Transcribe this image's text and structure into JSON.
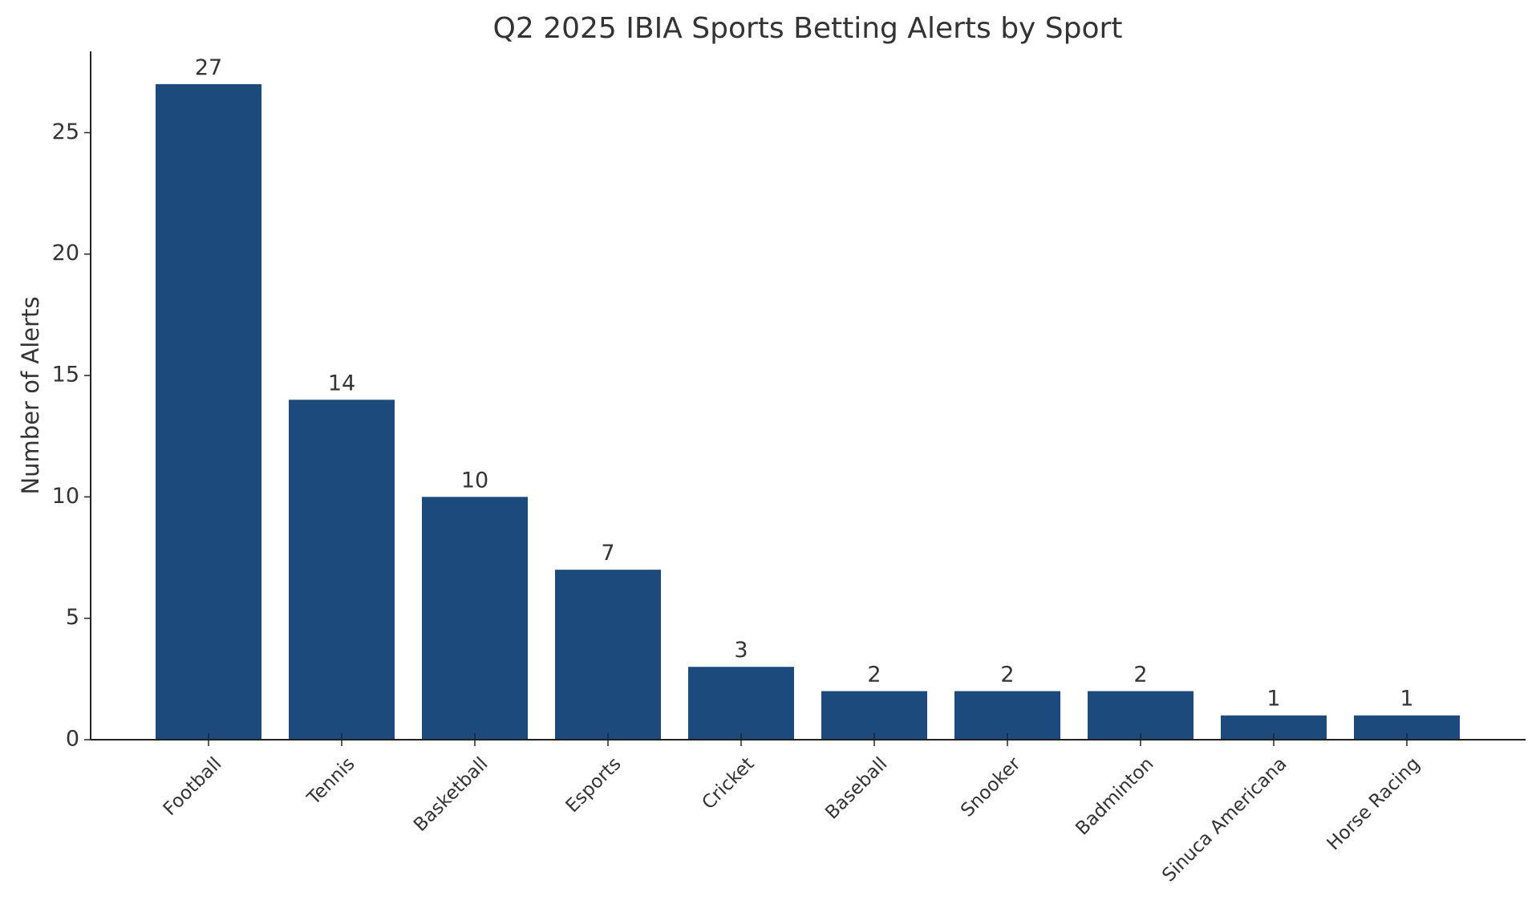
{
  "chart_data": {
    "type": "bar",
    "title": "Q2 2025 IBIA Sports Betting Alerts by Sport",
    "y_label": "Number of Alerts",
    "categories": [
      "Football",
      "Tennis",
      "Basketball",
      "Esports",
      "Cricket",
      "Baseball",
      "Snooker",
      "Badminton",
      "Sinuca Americana",
      "Horse Racing"
    ],
    "values": [
      27,
      14,
      10,
      7,
      3,
      2,
      2,
      2,
      1,
      1
    ],
    "color": "#1c4a7c",
    "ylim": [
      0,
      28.35
    ],
    "yticks": [
      0,
      5,
      10,
      15,
      20,
      25
    ],
    "grid": false
  }
}
